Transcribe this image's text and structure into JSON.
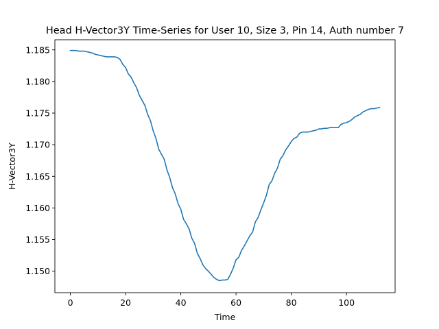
{
  "chart_data": {
    "type": "line",
    "title": "Head H-Vector3Y Time-Series for User 10, Size 3, Pin 14, Auth number 7",
    "xlabel": "Time",
    "ylabel": "H-Vector3Y",
    "xlim": [
      -5.6,
      117.6
    ],
    "ylim": [
      1.1466,
      1.1866
    ],
    "xticks": [
      0,
      20,
      40,
      60,
      80,
      100
    ],
    "xtick_labels": [
      "0",
      "20",
      "40",
      "60",
      "80",
      "100"
    ],
    "yticks": [
      1.15,
      1.155,
      1.16,
      1.165,
      1.17,
      1.175,
      1.18,
      1.185
    ],
    "ytick_labels": [
      "1.150",
      "1.155",
      "1.160",
      "1.165",
      "1.170",
      "1.175",
      "1.180",
      "1.185"
    ],
    "grid": false,
    "legend": false,
    "series": [
      {
        "color": "#1f77b4",
        "x": [
          0,
          1,
          2,
          3,
          4,
          5,
          6,
          7,
          8,
          9,
          10,
          11,
          12,
          13,
          14,
          15,
          16,
          17,
          18,
          19,
          20,
          21,
          22,
          23,
          24,
          25,
          26,
          27,
          28,
          29,
          30,
          31,
          32,
          33,
          34,
          35,
          36,
          37,
          38,
          39,
          40,
          41,
          42,
          43,
          44,
          45,
          46,
          47,
          48,
          49,
          50,
          51,
          52,
          53,
          54,
          55,
          56,
          57,
          58,
          59,
          60,
          61,
          62,
          63,
          64,
          65,
          66,
          67,
          68,
          69,
          70,
          71,
          72,
          73,
          74,
          75,
          76,
          77,
          78,
          79,
          80,
          81,
          82,
          83,
          84,
          85,
          86,
          87,
          88,
          89,
          90,
          91,
          92,
          93,
          94,
          95,
          96,
          97,
          98,
          99,
          100,
          101,
          102,
          103,
          104,
          105,
          106,
          107,
          108,
          109,
          110,
          111,
          112
        ],
        "y": [
          1.1849,
          1.1849,
          1.1849,
          1.1848,
          1.1848,
          1.1848,
          1.1847,
          1.1846,
          1.1845,
          1.1843,
          1.1842,
          1.1841,
          1.184,
          1.1839,
          1.1839,
          1.1839,
          1.1839,
          1.1838,
          1.1835,
          1.1827,
          1.1822,
          1.1812,
          1.1807,
          1.1798,
          1.179,
          1.1778,
          1.177,
          1.1762,
          1.1748,
          1.1738,
          1.1722,
          1.171,
          1.1693,
          1.1685,
          1.1677,
          1.166,
          1.1648,
          1.1632,
          1.1622,
          1.1607,
          1.1598,
          1.1582,
          1.1575,
          1.1567,
          1.1552,
          1.1544,
          1.1528,
          1.152,
          1.151,
          1.1504,
          1.15,
          1.1495,
          1.149,
          1.1487,
          1.1485,
          1.1486,
          1.1486,
          1.1487,
          1.1495,
          1.1505,
          1.1518,
          1.1522,
          1.1533,
          1.154,
          1.1548,
          1.1556,
          1.1562,
          1.1578,
          1.1585,
          1.1597,
          1.1608,
          1.162,
          1.1637,
          1.1643,
          1.1655,
          1.1663,
          1.1677,
          1.1683,
          1.1692,
          1.1698,
          1.1705,
          1.171,
          1.1712,
          1.1718,
          1.172,
          1.172,
          1.172,
          1.1721,
          1.1722,
          1.1723,
          1.1725,
          1.1725,
          1.1726,
          1.1726,
          1.1727,
          1.1727,
          1.1727,
          1.1727,
          1.1732,
          1.1734,
          1.1735,
          1.1737,
          1.174,
          1.1744,
          1.1746,
          1.1748,
          1.1752,
          1.1754,
          1.1756,
          1.1757,
          1.1757,
          1.1758,
          1.1759
        ]
      }
    ]
  }
}
